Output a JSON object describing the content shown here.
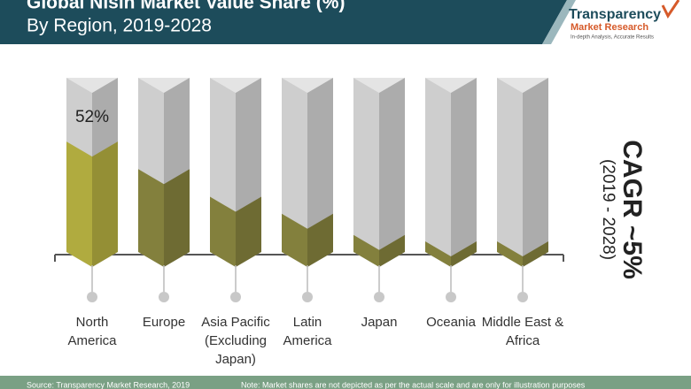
{
  "header": {
    "title": "Global Nisin Market Value Share (%)",
    "subtitle": "By Region, 2019-2028",
    "logo": {
      "name": "Transparency",
      "name2": "Market Research",
      "tagline": "In-depth Analysis, Accurate Results"
    }
  },
  "chart_data": {
    "type": "bar",
    "categories": [
      "North\nAmerica",
      "Europe",
      "Asia Pacific\n(Excluding Japan)",
      "Latin\nAmerica",
      "Japan",
      "Oceania",
      "Middle East &\nAfrica"
    ],
    "values": [
      52,
      39,
      26,
      18,
      8,
      5,
      5
    ],
    "value_labels": [
      "52%",
      null,
      null,
      null,
      null,
      null,
      null
    ],
    "ylim": [
      0,
      82
    ],
    "highlight_color": "#a8a33c",
    "color": "#7d7a3a",
    "column_color": "#c4c4c4"
  },
  "cagr": {
    "label": "CAGR ~5%",
    "period": "(2019 - 2028)"
  },
  "footer": {
    "source": "Source: Transparency Market Research, 2019",
    "note": "Note: Market shares are not depicted as per the actual scale and are only for illustration purposes"
  }
}
